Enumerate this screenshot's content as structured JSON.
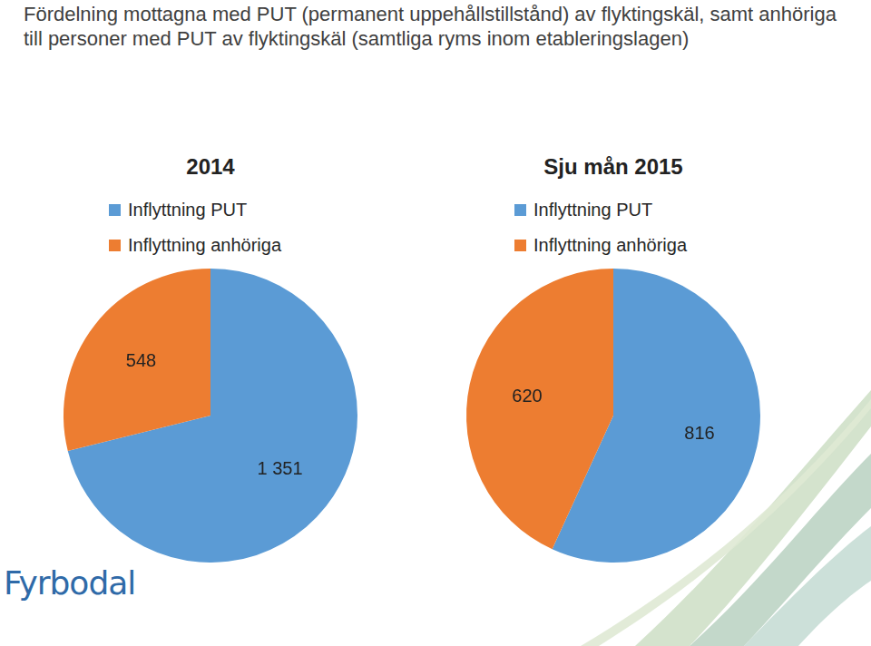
{
  "title": "Fördelning mottagna med PUT (permanent uppehållstillstånd) av flyktingskäl, samt anhöriga till personer med PUT av flyktingskäl (samtliga ryms inom etableringslagen)",
  "logo": "Fyrbodal",
  "chart_data": [
    {
      "type": "pie",
      "title": "2014",
      "categories": [
        "Inflyttning PUT",
        "Inflyttning anhöriga"
      ],
      "values": [
        1351,
        548
      ],
      "value_labels": [
        "1 351",
        "548"
      ],
      "colors": [
        "#5b9bd5",
        "#ed7d31"
      ],
      "data_labels": true,
      "legend": "top"
    },
    {
      "type": "pie",
      "title": "Sju mån 2015",
      "categories": [
        "Inflyttning PUT",
        "Inflyttning anhöriga"
      ],
      "values": [
        816,
        620
      ],
      "value_labels": [
        "816",
        "620"
      ],
      "colors": [
        "#5b9bd5",
        "#ed7d31"
      ],
      "data_labels": true,
      "legend": "top"
    }
  ]
}
